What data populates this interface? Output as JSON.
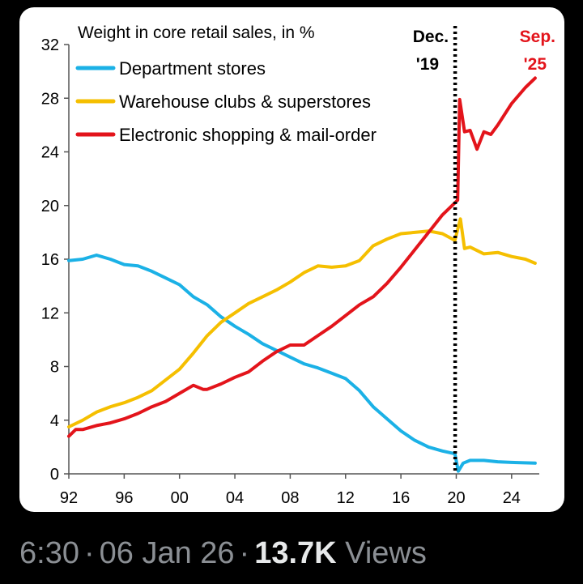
{
  "chart_data": {
    "type": "line",
    "title": "Weight in core retail sales, in %",
    "xlabel": "",
    "ylabel": "",
    "xlim": [
      1992,
      2026
    ],
    "ylim": [
      0,
      32
    ],
    "x_ticks": [
      1992,
      1996,
      2000,
      2004,
      2008,
      2012,
      2016,
      2020,
      2024
    ],
    "x_tick_labels": [
      "92",
      "96",
      "00",
      "04",
      "08",
      "12",
      "16",
      "20",
      "24"
    ],
    "y_ticks": [
      0,
      4,
      8,
      12,
      16,
      20,
      24,
      28,
      32
    ],
    "y_tick_labels": [
      "0",
      "4",
      "8",
      "12",
      "16",
      "20",
      "24",
      "28",
      "32"
    ],
    "grid": false,
    "legend_position": "top-left",
    "series": [
      {
        "name": "Department stores",
        "color": "#1bb1e6",
        "points": [
          [
            1992.0,
            15.9
          ],
          [
            1993.0,
            16.0
          ],
          [
            1994.0,
            16.3
          ],
          [
            1995.0,
            16.0
          ],
          [
            1996.0,
            15.6
          ],
          [
            1997.0,
            15.5
          ],
          [
            1998.0,
            15.1
          ],
          [
            1999.0,
            14.6
          ],
          [
            2000.0,
            14.1
          ],
          [
            2001.0,
            13.2
          ],
          [
            2002.0,
            12.6
          ],
          [
            2003.0,
            11.7
          ],
          [
            2004.0,
            11.0
          ],
          [
            2005.0,
            10.4
          ],
          [
            2006.0,
            9.7
          ],
          [
            2007.0,
            9.2
          ],
          [
            2008.0,
            8.7
          ],
          [
            2009.0,
            8.2
          ],
          [
            2010.0,
            7.9
          ],
          [
            2011.0,
            7.5
          ],
          [
            2012.0,
            7.1
          ],
          [
            2013.0,
            6.2
          ],
          [
            2014.0,
            5.0
          ],
          [
            2015.0,
            4.1
          ],
          [
            2016.0,
            3.2
          ],
          [
            2017.0,
            2.5
          ],
          [
            2018.0,
            2.0
          ],
          [
            2019.0,
            1.7
          ],
          [
            2019.9,
            1.5
          ],
          [
            2020.15,
            0.2
          ],
          [
            2020.5,
            0.8
          ],
          [
            2021.0,
            1.0
          ],
          [
            2022.0,
            1.0
          ],
          [
            2023.0,
            0.9
          ],
          [
            2024.0,
            0.85
          ],
          [
            2025.7,
            0.8
          ]
        ]
      },
      {
        "name": "Warehouse clubs & superstores",
        "color": "#f5bf00",
        "points": [
          [
            1992.0,
            3.5
          ],
          [
            1993.0,
            4.0
          ],
          [
            1994.0,
            4.6
          ],
          [
            1995.0,
            5.0
          ],
          [
            1996.0,
            5.3
          ],
          [
            1997.0,
            5.7
          ],
          [
            1998.0,
            6.2
          ],
          [
            1999.0,
            7.0
          ],
          [
            2000.0,
            7.8
          ],
          [
            2001.0,
            9.0
          ],
          [
            2002.0,
            10.3
          ],
          [
            2003.0,
            11.3
          ],
          [
            2004.0,
            12.0
          ],
          [
            2005.0,
            12.7
          ],
          [
            2006.0,
            13.2
          ],
          [
            2007.0,
            13.7
          ],
          [
            2008.0,
            14.3
          ],
          [
            2009.0,
            15.0
          ],
          [
            2010.0,
            15.5
          ],
          [
            2011.0,
            15.4
          ],
          [
            2012.0,
            15.5
          ],
          [
            2013.0,
            15.9
          ],
          [
            2014.0,
            17.0
          ],
          [
            2015.0,
            17.5
          ],
          [
            2016.0,
            17.9
          ],
          [
            2017.0,
            18.0
          ],
          [
            2018.0,
            18.1
          ],
          [
            2019.0,
            17.9
          ],
          [
            2019.9,
            17.4
          ],
          [
            2020.3,
            19.0
          ],
          [
            2020.6,
            16.8
          ],
          [
            2021.0,
            16.9
          ],
          [
            2022.0,
            16.4
          ],
          [
            2023.0,
            16.5
          ],
          [
            2024.0,
            16.2
          ],
          [
            2025.0,
            16.0
          ],
          [
            2025.7,
            15.7
          ]
        ]
      },
      {
        "name": "Electronic shopping & mail-order",
        "color": "#e3141b",
        "points": [
          [
            1992.0,
            2.8
          ],
          [
            1992.5,
            3.3
          ],
          [
            1993.0,
            3.3
          ],
          [
            1994.0,
            3.6
          ],
          [
            1995.0,
            3.8
          ],
          [
            1996.0,
            4.1
          ],
          [
            1997.0,
            4.5
          ],
          [
            1998.0,
            5.0
          ],
          [
            1999.0,
            5.4
          ],
          [
            2000.0,
            6.0
          ],
          [
            2001.0,
            6.6
          ],
          [
            2001.7,
            6.3
          ],
          [
            2002.0,
            6.3
          ],
          [
            2003.0,
            6.7
          ],
          [
            2004.0,
            7.2
          ],
          [
            2005.0,
            7.6
          ],
          [
            2006.0,
            8.4
          ],
          [
            2007.0,
            9.1
          ],
          [
            2008.0,
            9.6
          ],
          [
            2009.0,
            9.6
          ],
          [
            2010.0,
            10.3
          ],
          [
            2011.0,
            11.0
          ],
          [
            2012.0,
            11.8
          ],
          [
            2013.0,
            12.6
          ],
          [
            2014.0,
            13.2
          ],
          [
            2015.0,
            14.2
          ],
          [
            2016.0,
            15.4
          ],
          [
            2017.0,
            16.7
          ],
          [
            2018.0,
            18.0
          ],
          [
            2019.0,
            19.3
          ],
          [
            2019.9,
            20.2
          ],
          [
            2020.1,
            20.4
          ],
          [
            2020.25,
            27.9
          ],
          [
            2020.6,
            25.5
          ],
          [
            2021.0,
            25.6
          ],
          [
            2021.5,
            24.2
          ],
          [
            2022.0,
            25.5
          ],
          [
            2022.5,
            25.3
          ],
          [
            2023.0,
            26.0
          ],
          [
            2024.0,
            27.6
          ],
          [
            2025.0,
            28.8
          ],
          [
            2025.7,
            29.5
          ]
        ]
      }
    ],
    "annotations": [
      {
        "x": 2019.92,
        "label_line1": "Dec.",
        "label_line2": "'19",
        "color": "#000000",
        "style": "dotted vertical line"
      },
      {
        "x": 2025.7,
        "label_line1": "Sep.",
        "label_line2": "'25",
        "color": "#e3141b"
      }
    ]
  },
  "footer": {
    "time": "6:30",
    "separator": "·",
    "date": "06 Jan 26",
    "views_count": "13.7K",
    "views_label": "Views"
  }
}
